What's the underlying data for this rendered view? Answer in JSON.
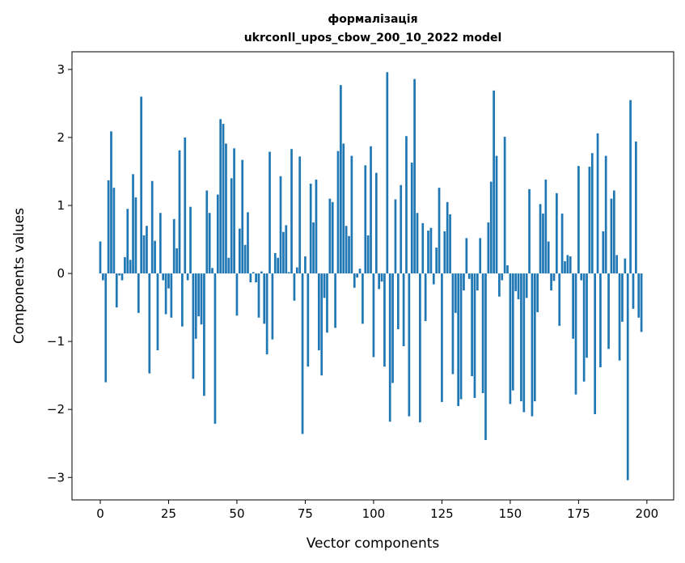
{
  "chart_data": {
    "type": "bar",
    "title": "формалізація",
    "subtitle": "ukrconll_upos_cbow_200_10_2022 model",
    "xlabel": "Vector components",
    "ylabel": "Components values",
    "xlim": [
      -10.35,
      209.8
    ],
    "ylim": [
      -3.33,
      3.26
    ],
    "xticks": [
      0,
      25,
      50,
      75,
      100,
      125,
      150,
      175,
      200
    ],
    "xtick_labels": [
      "0",
      "25",
      "50",
      "75",
      "100",
      "125",
      "150",
      "175",
      "200"
    ],
    "yticks": [
      3,
      2,
      1,
      0,
      -1,
      -2,
      -3
    ],
    "ytick_labels": [
      "3",
      "2",
      "1",
      "0",
      "−1",
      "−2",
      "−3"
    ],
    "grid": false,
    "color": "#1f77b4",
    "values": [
      0.47,
      -0.1,
      -1.6,
      1.37,
      2.09,
      1.26,
      -0.5,
      -0.03,
      -0.1,
      0.24,
      0.95,
      0.2,
      1.46,
      1.12,
      -0.58,
      2.6,
      0.56,
      0.7,
      -1.47,
      1.36,
      0.48,
      -1.13,
      0.89,
      -0.1,
      -0.6,
      -0.22,
      -0.65,
      0.8,
      0.37,
      1.81,
      -0.78,
      2.0,
      -0.1,
      0.98,
      -1.55,
      -0.96,
      -0.63,
      -0.75,
      -1.8,
      1.22,
      0.89,
      0.08,
      -2.21,
      1.16,
      2.27,
      2.2,
      1.91,
      0.23,
      1.4,
      1.84,
      -0.62,
      0.66,
      1.67,
      0.42,
      0.9,
      -0.13,
      0.02,
      -0.13,
      -0.65,
      0.03,
      -0.74,
      -1.19,
      1.79,
      -0.97,
      0.3,
      0.23,
      1.43,
      0.61,
      0.71,
      0.02,
      1.83,
      -0.4,
      0.09,
      1.72,
      -2.36,
      0.25,
      -1.37,
      1.32,
      0.75,
      1.38,
      -1.13,
      -1.5,
      -0.36,
      -0.87,
      1.1,
      1.05,
      -0.8,
      1.8,
      2.77,
      1.91,
      0.7,
      0.55,
      1.73,
      -0.21,
      -0.06,
      0.07,
      -0.74,
      1.59,
      0.56,
      1.87,
      -1.23,
      1.48,
      -0.23,
      -0.12,
      -1.37,
      2.96,
      -2.18,
      -1.61,
      1.09,
      -0.82,
      1.3,
      -1.07,
      2.02,
      -2.1,
      1.63,
      2.86,
      0.89,
      -2.19,
      0.74,
      -0.7,
      0.63,
      0.67,
      -0.16,
      0.38,
      1.26,
      -1.89,
      0.62,
      1.05,
      0.87,
      -1.48,
      -0.58,
      -1.95,
      -1.85,
      -0.25,
      0.52,
      -0.08,
      -1.51,
      -1.83,
      -0.25,
      0.52,
      -1.76,
      -2.45,
      0.75,
      1.35,
      2.69,
      1.73,
      -0.34,
      -0.1,
      2.01,
      0.12,
      -1.92,
      -1.72,
      -0.26,
      -0.38,
      -1.88,
      -2.04,
      -0.36,
      1.24,
      -2.1,
      -1.88,
      -0.57,
      1.02,
      0.88,
      1.38,
      0.47,
      -0.25,
      -0.11,
      1.18,
      -0.77,
      0.88,
      0.18,
      0.27,
      0.25,
      -0.96,
      -1.78,
      1.58,
      -0.1,
      -1.59,
      -1.24,
      1.57,
      1.77,
      -2.07,
      2.06,
      -1.38,
      0.62,
      1.73,
      -1.11,
      1.1,
      1.22,
      0.27,
      -1.28,
      -0.71,
      0.22,
      -3.04,
      2.55,
      -0.52,
      1.94,
      -0.65,
      -0.86,
      0.0
    ]
  }
}
